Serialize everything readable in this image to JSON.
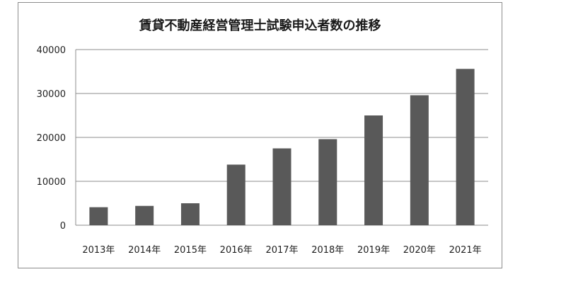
{
  "chart_data": {
    "type": "bar",
    "title": "賃貸不動産経営管理士試験申込者数の推移",
    "categories": [
      "2013年",
      "2014年",
      "2015年",
      "2016年",
      "2017年",
      "2018年",
      "2019年",
      "2020年",
      "2021年"
    ],
    "values": [
      4100,
      4400,
      5000,
      13800,
      17500,
      19600,
      25000,
      29600,
      35600
    ],
    "ylim": [
      0,
      40000
    ],
    "yticks": [
      0,
      10000,
      20000,
      30000,
      40000
    ],
    "grid": true,
    "legend": "none",
    "colors": {
      "bar": "#595959",
      "grid": "#8c8c8c",
      "axis": "#8c8c8c"
    }
  }
}
